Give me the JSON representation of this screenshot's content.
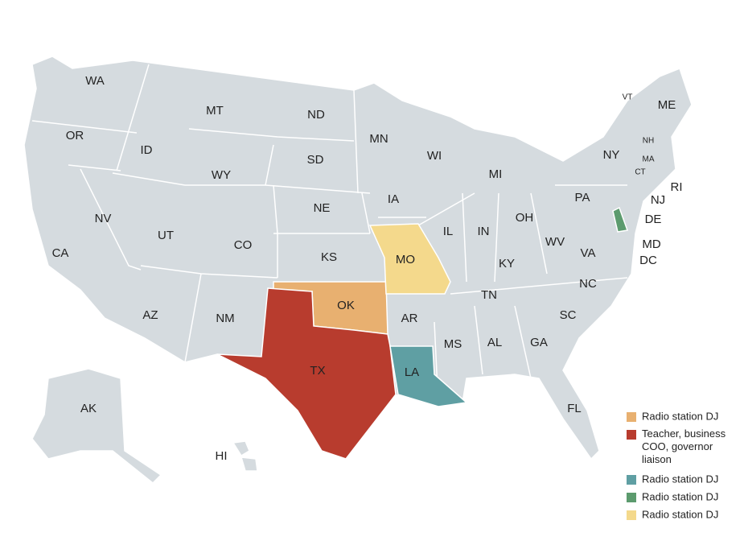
{
  "states": [
    {
      "label": "WA"
    },
    {
      "label": "OR"
    },
    {
      "label": "CA"
    },
    {
      "label": "NV"
    },
    {
      "label": "ID"
    },
    {
      "label": "MT"
    },
    {
      "label": "WY"
    },
    {
      "label": "UT"
    },
    {
      "label": "CO"
    },
    {
      "label": "AZ"
    },
    {
      "label": "NM"
    },
    {
      "label": "ND"
    },
    {
      "label": "SD"
    },
    {
      "label": "NE"
    },
    {
      "label": "KS"
    },
    {
      "label": "OK",
      "color": "#e8b070"
    },
    {
      "label": "TX",
      "color": "#b83c2e"
    },
    {
      "label": "MN"
    },
    {
      "label": "IA"
    },
    {
      "label": "MO",
      "color": "#f4d98c"
    },
    {
      "label": "AR"
    },
    {
      "label": "LA",
      "color": "#5f9fa3"
    },
    {
      "label": "WI"
    },
    {
      "label": "IL"
    },
    {
      "label": "MI"
    },
    {
      "label": "IN"
    },
    {
      "label": "OH"
    },
    {
      "label": "KY"
    },
    {
      "label": "TN"
    },
    {
      "label": "MS"
    },
    {
      "label": "AL"
    },
    {
      "label": "GA"
    },
    {
      "label": "FL"
    },
    {
      "label": "SC"
    },
    {
      "label": "NC"
    },
    {
      "label": "VA"
    },
    {
      "label": "WV"
    },
    {
      "label": "PA"
    },
    {
      "label": "NY"
    },
    {
      "label": "VT"
    },
    {
      "label": "NH"
    },
    {
      "label": "ME"
    },
    {
      "label": "MA"
    },
    {
      "label": "CT"
    },
    {
      "label": "RI"
    },
    {
      "label": "NJ"
    },
    {
      "label": "DE",
      "color": "#5c9b6e"
    },
    {
      "label": "MD"
    },
    {
      "label": "DC"
    },
    {
      "label": "AK"
    },
    {
      "label": "HI"
    }
  ],
  "legend": [
    {
      "label": "Radio station DJ",
      "color": "#e8b070"
    },
    {
      "label": "Teacher, business COO, governor liaison",
      "color": "#b83c2e"
    },
    {
      "label": "Radio station DJ",
      "color": "#5f9fa3"
    },
    {
      "label": "Radio station DJ",
      "color": "#5c9b6e"
    },
    {
      "label": "Radio station DJ",
      "color": "#f4d98c"
    }
  ]
}
